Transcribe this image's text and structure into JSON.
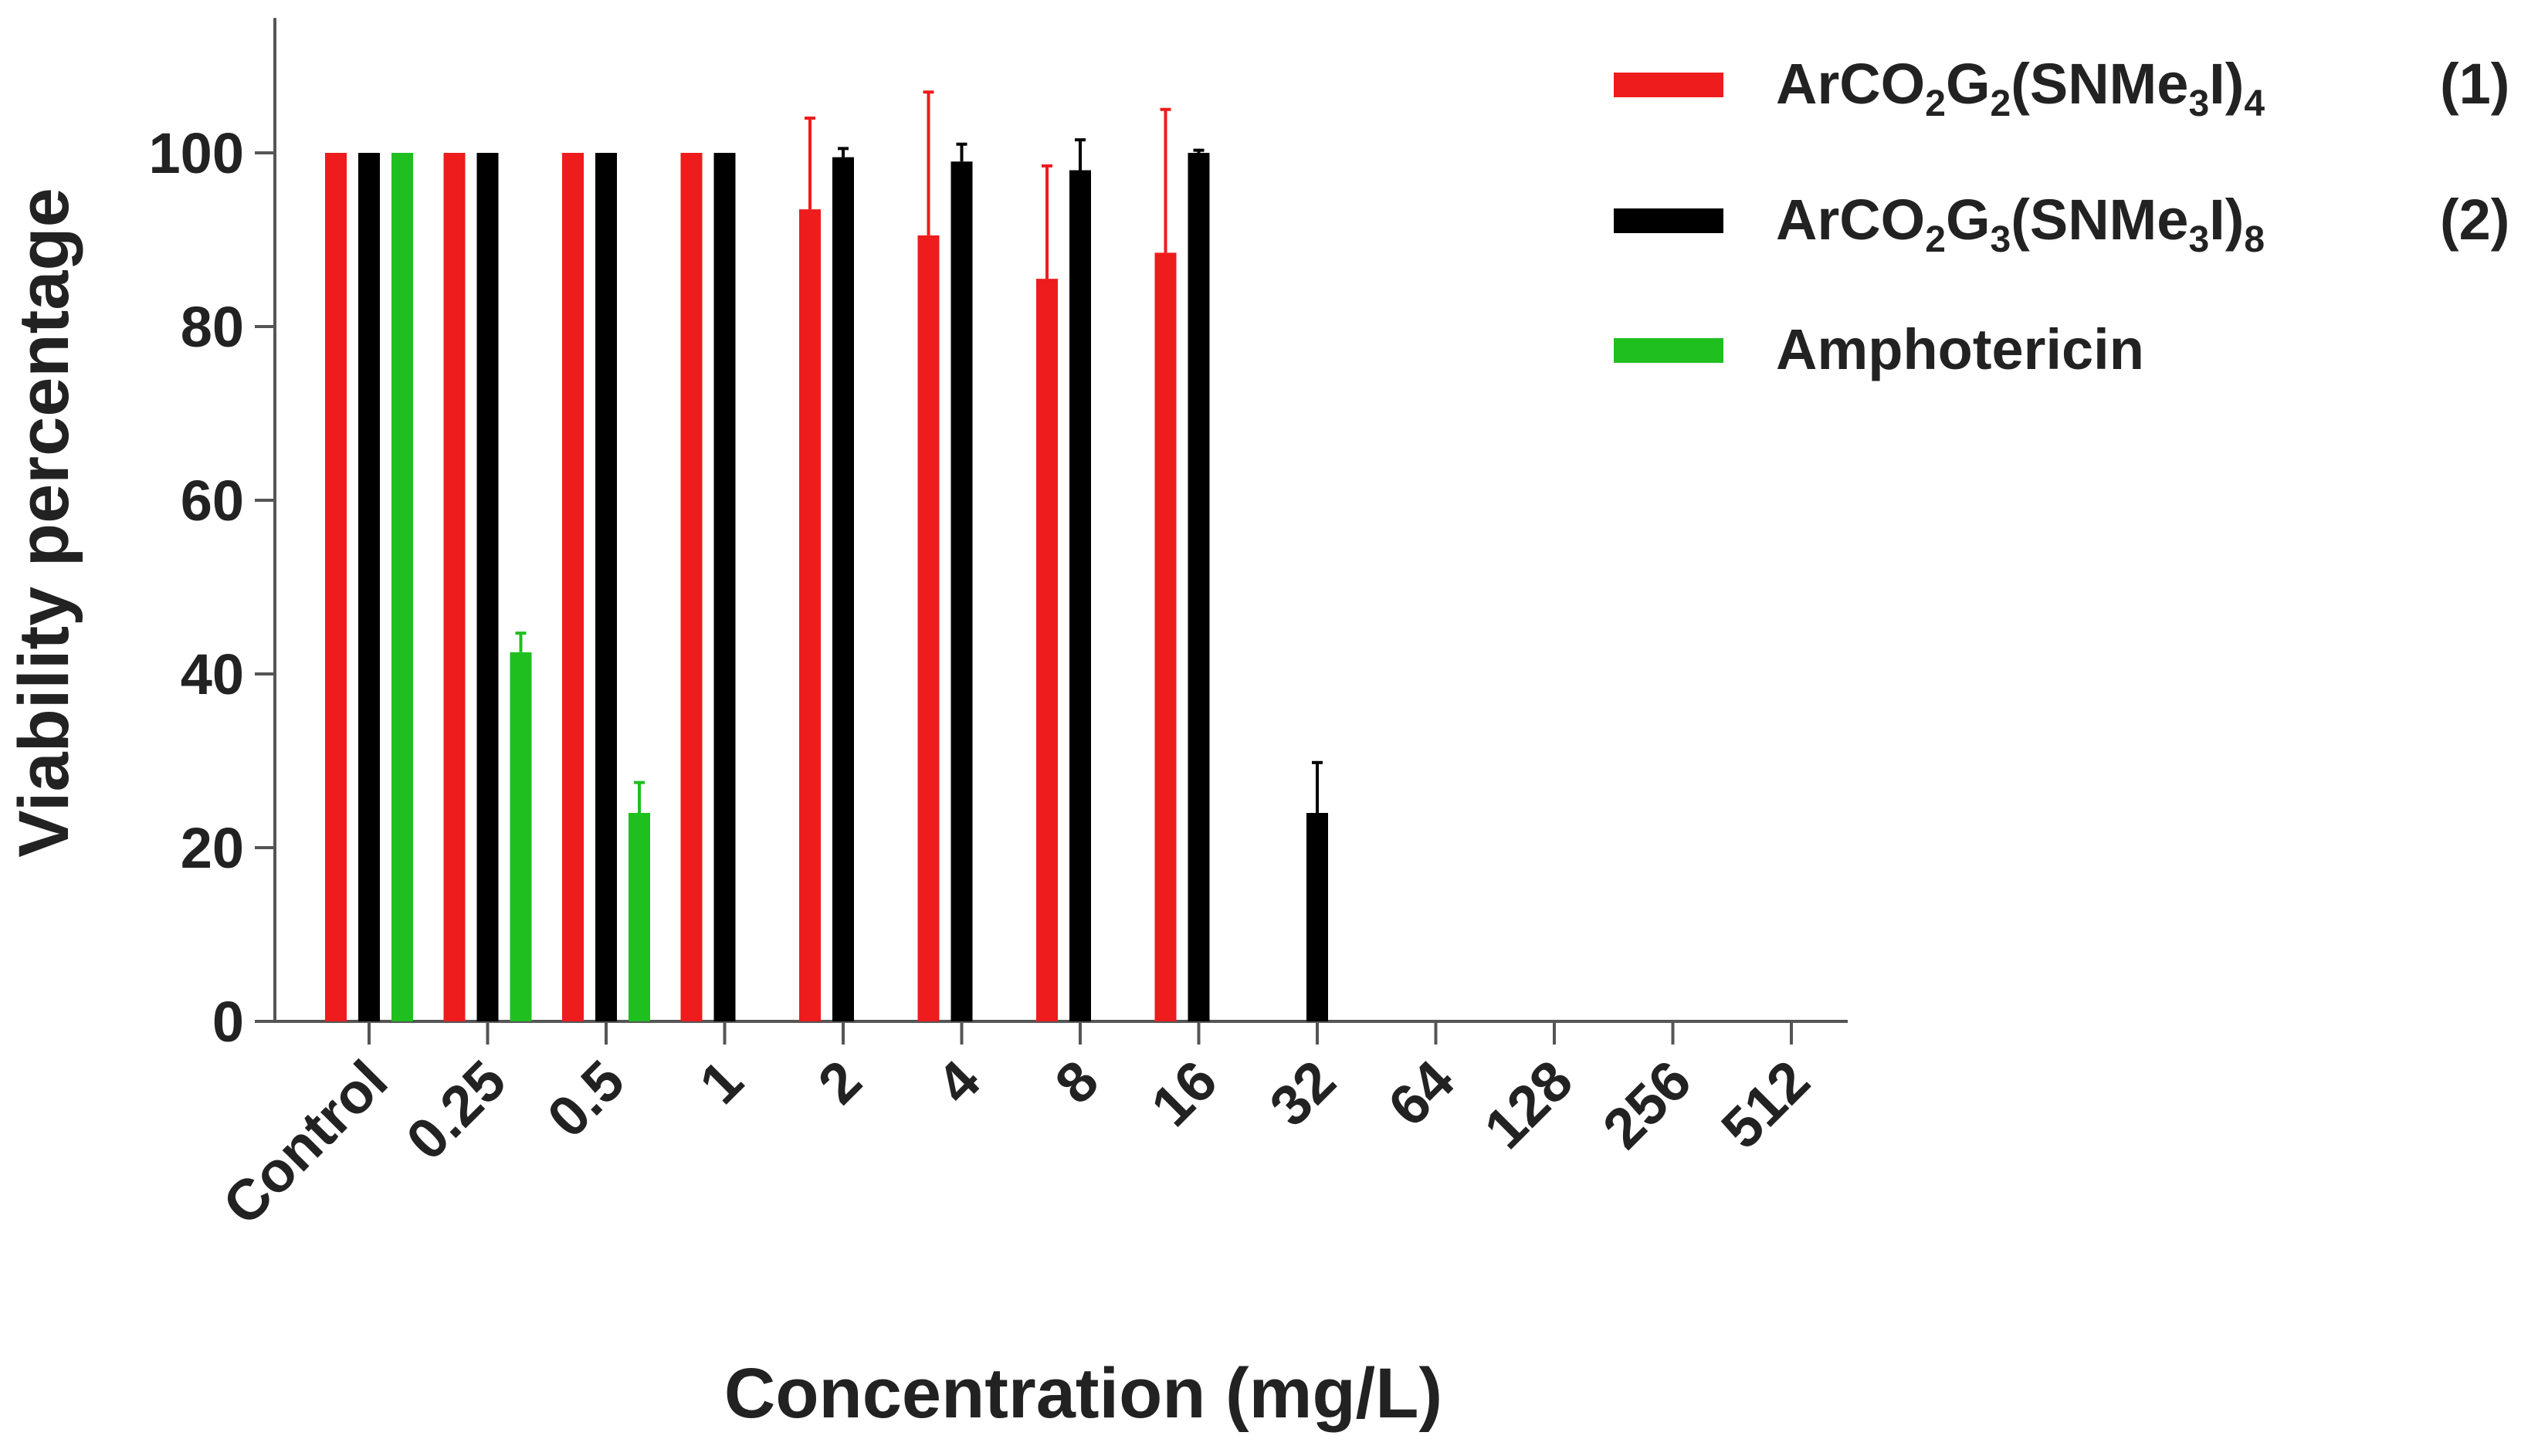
{
  "chart_data": {
    "type": "bar",
    "title": "",
    "xlabel": "Concentration (mg/L)",
    "ylabel": "Viability percentage",
    "ylim": [
      0,
      115
    ],
    "yticks": [
      0,
      20,
      40,
      60,
      80,
      100
    ],
    "grid": false,
    "legend_position": "top-right",
    "categories": [
      "Control",
      "0.25",
      "0.5",
      "1",
      "2",
      "4",
      "8",
      "16",
      "32",
      "64",
      "128",
      "256",
      "512"
    ],
    "series": [
      {
        "name": "ArCO2G2(SNMe3I)4",
        "legend_parts": [
          {
            "text": "ArCO",
            "sub": false
          },
          {
            "text": "2",
            "sub": true
          },
          {
            "text": "G",
            "sub": false
          },
          {
            "text": "2",
            "sub": true
          },
          {
            "text": "(SNMe",
            "sub": false
          },
          {
            "text": "3",
            "sub": true
          },
          {
            "text": "I)",
            "sub": false
          },
          {
            "text": "4",
            "sub": true
          }
        ],
        "legend_suffix": "(1)",
        "color": "#ee1c1c",
        "values": [
          100,
          100,
          100,
          100,
          93.5,
          90.5,
          85.5,
          88.5,
          0,
          0,
          0,
          0,
          0
        ],
        "errors": [
          0,
          0,
          0,
          0,
          10.5,
          16.5,
          13,
          16.5,
          0,
          0,
          0,
          0,
          0
        ]
      },
      {
        "name": "ArCO2G3(SNMe3I)8",
        "legend_parts": [
          {
            "text": "ArCO",
            "sub": false
          },
          {
            "text": "2",
            "sub": true
          },
          {
            "text": "G",
            "sub": false
          },
          {
            "text": "3",
            "sub": true
          },
          {
            "text": "(SNMe",
            "sub": false
          },
          {
            "text": "3",
            "sub": true
          },
          {
            "text": "I)",
            "sub": false
          },
          {
            "text": "8",
            "sub": true
          }
        ],
        "legend_suffix": "(2)",
        "color": "#000000",
        "values": [
          100,
          100,
          100,
          100,
          99.5,
          99,
          98,
          100,
          24,
          0,
          0,
          0,
          0
        ],
        "errors": [
          0,
          0,
          0,
          0,
          1,
          2,
          3.5,
          0.3,
          5.8,
          0,
          0,
          0,
          0
        ]
      },
      {
        "name": "Amphotericin",
        "legend_parts": [
          {
            "text": "Amphotericin",
            "sub": false
          }
        ],
        "legend_suffix": "",
        "color": "#1fbf1f",
        "values": [
          100,
          42.5,
          24,
          null,
          null,
          null,
          null,
          null,
          null,
          null,
          null,
          null,
          null
        ],
        "errors": [
          0,
          2.2,
          3.5,
          null,
          null,
          null,
          null,
          null,
          null,
          null,
          null,
          null,
          null
        ]
      }
    ]
  }
}
